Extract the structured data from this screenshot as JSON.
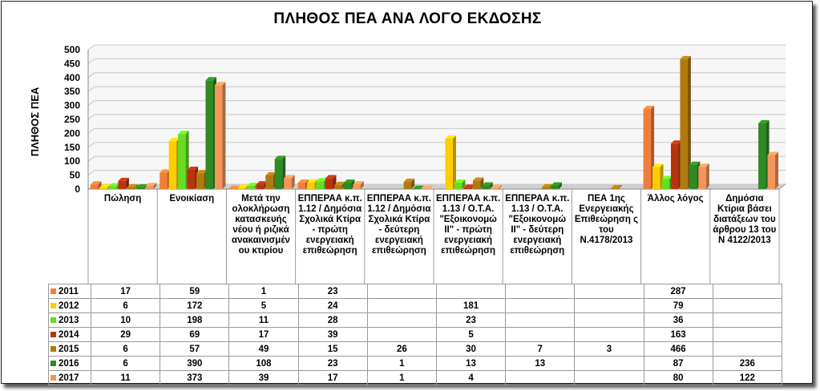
{
  "chart_data": {
    "type": "bar",
    "title": "ΠΛΗΘΟΣ ΠΕΑ ΑΝΑ ΛΟΓΟ ΕΚΔΟΣΗΣ",
    "ylabel": "ΠΛΗΘΟΣ ΠΕΑ",
    "xlabel": "",
    "ylim": [
      0,
      500
    ],
    "yticks": [
      0,
      50,
      100,
      150,
      200,
      250,
      300,
      350,
      400,
      450,
      500
    ],
    "grid": true,
    "legend": "table",
    "categories": [
      "Πώληση",
      "Ενοικίαση",
      "Μετά την ολοκλήρωση κατασκευής νέου ή ριζικά ανακαινισμέν ου κτιρίου",
      "ΕΠΠΕΡΑΑ κ.π. 1.12 / Δημόσια Σχολικά Κτίρα - πρώτη ενεργειακή επιθεώρηση",
      "ΕΠΠΕΡΑΑ κ.π. 1.12 / Δημόσια Σχολικά Κτίρα - δεύτερη ενεργειακή επιθεώρηση",
      "ΕΠΠΕΡΑΑ κ.π. 1.13 / Ο.Τ.Α. \"Εξοικονομώ ΙΙ\" - πρώτη ενεργειακή επιθεώρηση",
      "ΕΠΠΕΡΑΑ κ.π. 1.13 / Ο.Τ.Α. \"Εξοικονομώ ΙΙ\" - δεύτερη ενεργειακή επιθεώρηση",
      "ΠΕΑ 1ης Ενεργειακής Επιθεώρηση ς του Ν.4178/2013",
      "Άλλος λόγος",
      "Δημόσια Κτίρια βάσει διατάξεων του άρθρου 13 του Ν 4122/2013"
    ],
    "series": [
      {
        "name": "2011",
        "color": "#F07E3A",
        "values": [
          17,
          59,
          1,
          23,
          null,
          null,
          null,
          null,
          287,
          null
        ]
      },
      {
        "name": "2012",
        "color": "#FFCC00",
        "values": [
          6,
          172,
          5,
          24,
          null,
          181,
          null,
          null,
          79,
          null
        ]
      },
      {
        "name": "2013",
        "color": "#66DD22",
        "values": [
          10,
          198,
          11,
          28,
          null,
          23,
          null,
          null,
          36,
          null
        ]
      },
      {
        "name": "2014",
        "color": "#B8340E",
        "values": [
          29,
          69,
          17,
          39,
          null,
          5,
          null,
          null,
          163,
          null
        ]
      },
      {
        "name": "2015",
        "color": "#B07A10",
        "values": [
          6,
          57,
          49,
          15,
          26,
          30,
          7,
          3,
          466,
          null
        ]
      },
      {
        "name": "2016",
        "color": "#2E8A22",
        "values": [
          6,
          390,
          108,
          23,
          1,
          13,
          13,
          null,
          87,
          236
        ]
      },
      {
        "name": "2017",
        "color": "#F4955A",
        "values": [
          11,
          373,
          39,
          17,
          1,
          4,
          null,
          null,
          80,
          122
        ]
      }
    ]
  }
}
